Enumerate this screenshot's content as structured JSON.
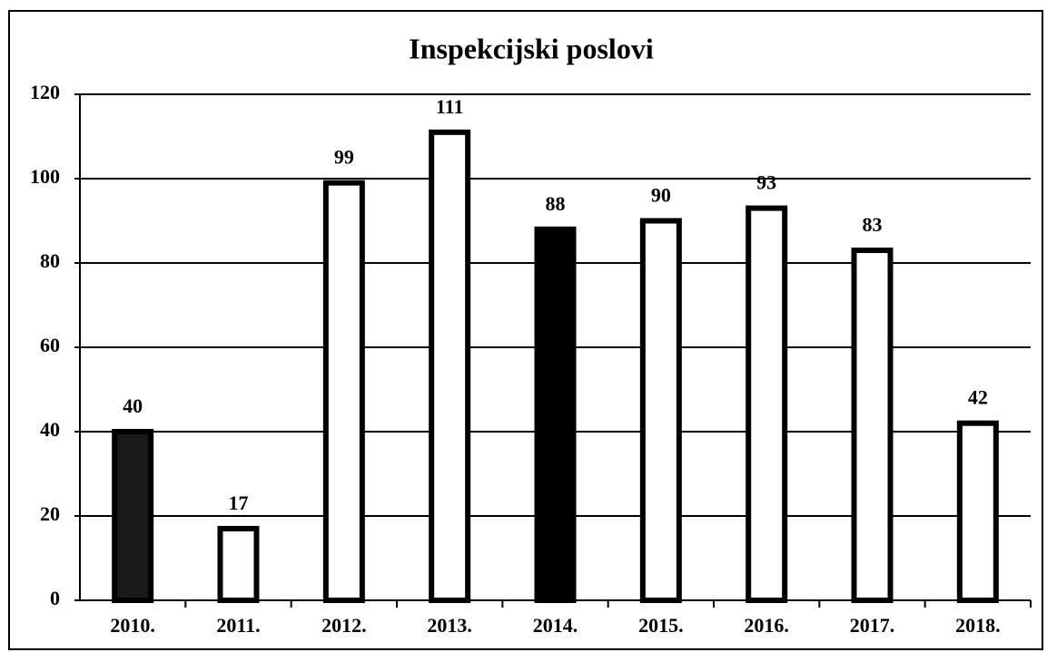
{
  "chart_data": {
    "type": "bar",
    "title": "Inspekcijski poslovi",
    "categories": [
      "2010.",
      "2011.",
      "2012.",
      "2013.",
      "2014.",
      "2015.",
      "2016.",
      "2017.",
      "2018."
    ],
    "values": [
      40,
      17,
      99,
      111,
      88,
      90,
      93,
      83,
      42
    ],
    "colors": [
      "#1a1a1a",
      "#ffffff",
      "#ffffff",
      "#ffffff",
      "#000000",
      "#ffffff",
      "#ffffff",
      "#ffffff",
      "#ffffff"
    ],
    "ylim": [
      0,
      120
    ],
    "yticks": [
      0,
      20,
      40,
      60,
      80,
      100,
      120
    ],
    "grid": true
  }
}
